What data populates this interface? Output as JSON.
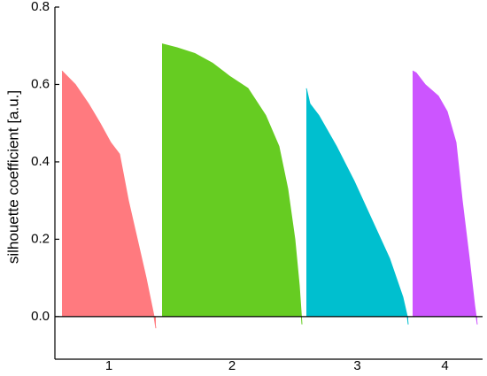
{
  "chart_data": {
    "type": "silhouette",
    "y_label": "silhouette coefficient [a.u.]",
    "xlim": [
      0,
      483
    ],
    "ylim": [
      -0.11,
      0.8
    ],
    "yticks": [
      {
        "value": 0,
        "label": "0.0"
      },
      0.2,
      0.4,
      0.6,
      0.8
    ],
    "zero_line": true,
    "series": [
      {
        "name": "1",
        "color": "#ff7a7f",
        "x": [
          8,
          23,
          38,
          51,
          63,
          73,
          83,
          93,
          103,
          112,
          114
        ],
        "values": [
          0.635,
          0.6,
          0.55,
          0.5,
          0.45,
          0.42,
          0.3,
          0.2,
          0.1,
          0.0,
          -0.03
        ]
      },
      {
        "name": "2",
        "color": "#66cc22",
        "x": [
          121,
          138,
          158,
          178,
          198,
          218,
          238,
          253,
          263,
          271,
          276,
          279
        ],
        "values": [
          0.705,
          0.695,
          0.68,
          0.655,
          0.62,
          0.59,
          0.52,
          0.44,
          0.33,
          0.2,
          0.08,
          -0.02
        ]
      },
      {
        "name": "3",
        "color": "#00bfcf",
        "x": [
          284,
          288,
          298,
          318,
          338,
          358,
          378,
          393,
          398,
          399
        ],
        "values": [
          0.59,
          0.55,
          0.52,
          0.44,
          0.35,
          0.25,
          0.15,
          0.05,
          0.0,
          -0.02
        ]
      },
      {
        "name": "4",
        "color": "#cc55ff",
        "x": [
          404,
          408,
          418,
          433,
          443,
          453,
          460,
          468,
          474,
          477
        ],
        "values": [
          0.635,
          0.63,
          0.6,
          0.57,
          0.53,
          0.45,
          0.3,
          0.15,
          0.03,
          -0.02
        ]
      }
    ]
  }
}
